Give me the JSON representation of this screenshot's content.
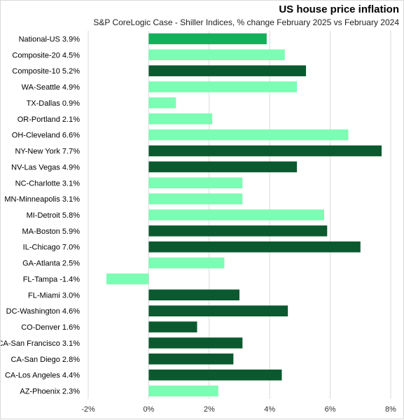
{
  "chart_data": {
    "type": "bar",
    "orientation": "horizontal",
    "title": "US house price inflation",
    "subtitle": "S&P CoreLogic Case - Shiller Indices, % change February 2025 vs February 2024",
    "xlim": [
      -2,
      8
    ],
    "xticks": [
      "-2%",
      "0%",
      "2%",
      "4%",
      "6%",
      "8%"
    ],
    "xtick_values": [
      -2,
      0,
      2,
      4,
      6,
      8
    ],
    "grid": true,
    "colors": {
      "national": "#13b05a",
      "dark": "#0b5a2f",
      "light": "#7dfcb3"
    },
    "categories": [
      "National-US 3.9%",
      "Composite-20 4.5%",
      "Composite-10 5.2%",
      "WA-Seattle 4.9%",
      "TX-Dallas 0.9%",
      "OR-Portland 2.1%",
      "OH-Cleveland 6.6%",
      "NY-New York 7.7%",
      "NV-Las Vegas 4.9%",
      "NC-Charlotte 3.1%",
      "MN-Minneapolis 3.1%",
      "MI-Detroit 5.8%",
      "MA-Boston 5.9%",
      "IL-Chicago 7.0%",
      "GA-Atlanta 2.5%",
      "FL-Tampa -1.4%",
      "FL-Miami 3.0%",
      "DC-Washington 4.6%",
      "CO-Denver 1.6%",
      "CA-San Francisco 3.1%",
      "CA-San Diego 2.8%",
      "CA-Los Angeles 4.4%",
      "AZ-Phoenix 2.3%"
    ],
    "values": [
      3.9,
      4.5,
      5.2,
      4.9,
      0.9,
      2.1,
      6.6,
      7.7,
      4.9,
      3.1,
      3.1,
      5.8,
      5.9,
      7.0,
      2.5,
      -1.4,
      3.0,
      4.6,
      1.6,
      3.1,
      2.8,
      4.4,
      2.3
    ],
    "bar_color_keys": [
      "national",
      "light",
      "dark",
      "light",
      "light",
      "light",
      "light",
      "dark",
      "dark",
      "light",
      "light",
      "light",
      "dark",
      "dark",
      "light",
      "light",
      "dark",
      "dark",
      "dark",
      "dark",
      "dark",
      "dark",
      "light"
    ]
  }
}
